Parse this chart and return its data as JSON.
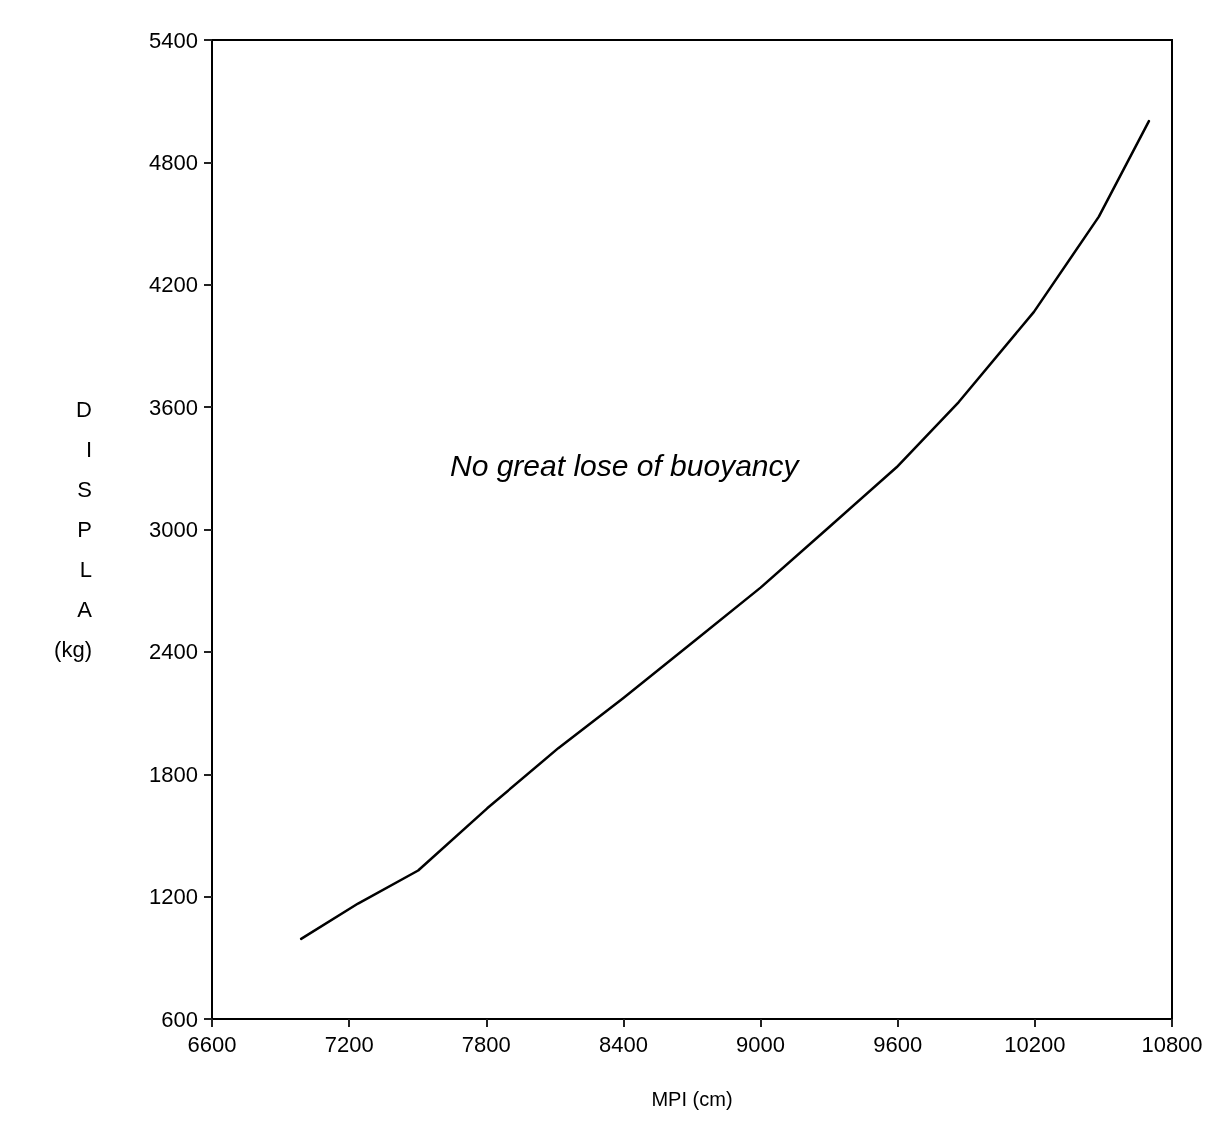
{
  "chart_data": {
    "type": "line",
    "xlabel": "MPI (cm)",
    "ylabel": "DISPLA (kg)",
    "annotations": [
      "No great lose of buoyancy"
    ],
    "x": [
      6990,
      7239,
      7502,
      7804,
      8115,
      8400,
      8728,
      9000,
      9298,
      9595,
      9867,
      10196,
      10480,
      10699
    ],
    "series": [
      {
        "color": "#000000",
        "values": [
          993,
          1166,
          1328,
          1633,
          1928,
          2174,
          2469,
          2715,
          3010,
          3305,
          3625,
          4067,
          4534,
          5002
        ]
      }
    ],
    "xlim": [
      6600,
      10800
    ],
    "xticks": [
      6600,
      7200,
      7800,
      8400,
      9000,
      9600,
      10200,
      10800
    ],
    "ylim": [
      600,
      5400
    ],
    "yticks": [
      600,
      1200,
      1800,
      2400,
      3000,
      3600,
      4200,
      4800,
      5400
    ],
    "grid": false,
    "marker": "none",
    "line_style": "solid"
  }
}
